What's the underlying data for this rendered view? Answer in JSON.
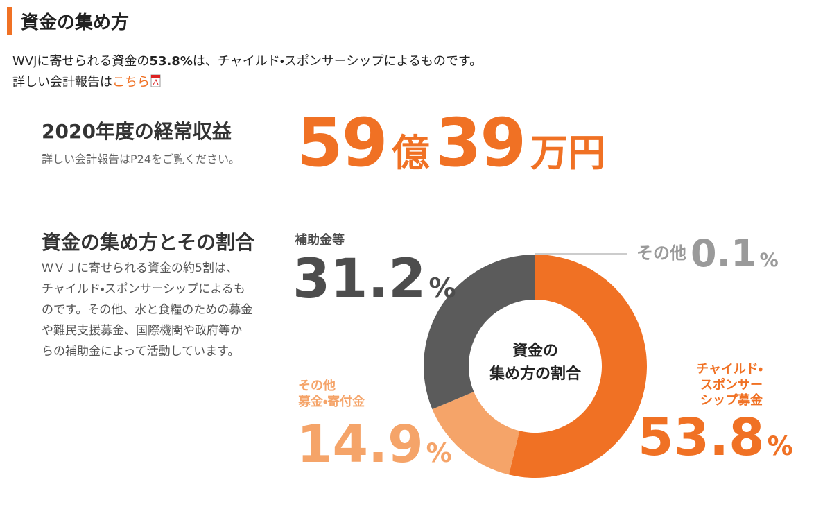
{
  "header": {
    "title": "資金の集め方"
  },
  "intro": {
    "line1_prefix": "WVJに寄せられる資金の",
    "line1_bold": "53.8%",
    "line1_suffix": "は、チャイルド・スポンサーシップによるものです。",
    "line2_prefix": "詳しい会計報告は",
    "link": "こちら"
  },
  "revenue": {
    "heading": "2020年度の経常収益",
    "note": "詳しい会計報告はP24をご覧ください。",
    "amount_oku": "59",
    "unit_oku": "億",
    "amount_man": "39",
    "unit_man": "万円"
  },
  "breakdown": {
    "heading": "資金の集め方とその割合",
    "body": [
      "ＷＶＪに寄せられる資金の約5割は、",
      "チャイルド・スポンサーシップによるも",
      "のです。その他、水と食糧のための募金",
      "や難民支援募金、国際機関や政府等か",
      "らの補助金によって活動しています。"
    ]
  },
  "chart_data": {
    "type": "donut",
    "center_label": "資金の\n集め方の割合",
    "categories": [
      "チャイルド・\nスポンサー\nシップ募金",
      "その他\n募金・寄付金",
      "補助金等",
      "その他"
    ],
    "values": [
      53.8,
      14.9,
      31.2,
      0.1
    ],
    "percent_sign": "%",
    "colors": [
      "#f07124",
      "#f5a469",
      "#5b5b5b",
      "#c8c8c8"
    ],
    "label_colors": [
      "#f07124",
      "#f5a469",
      "#4d4d4d",
      "#9a9a9a"
    ]
  }
}
